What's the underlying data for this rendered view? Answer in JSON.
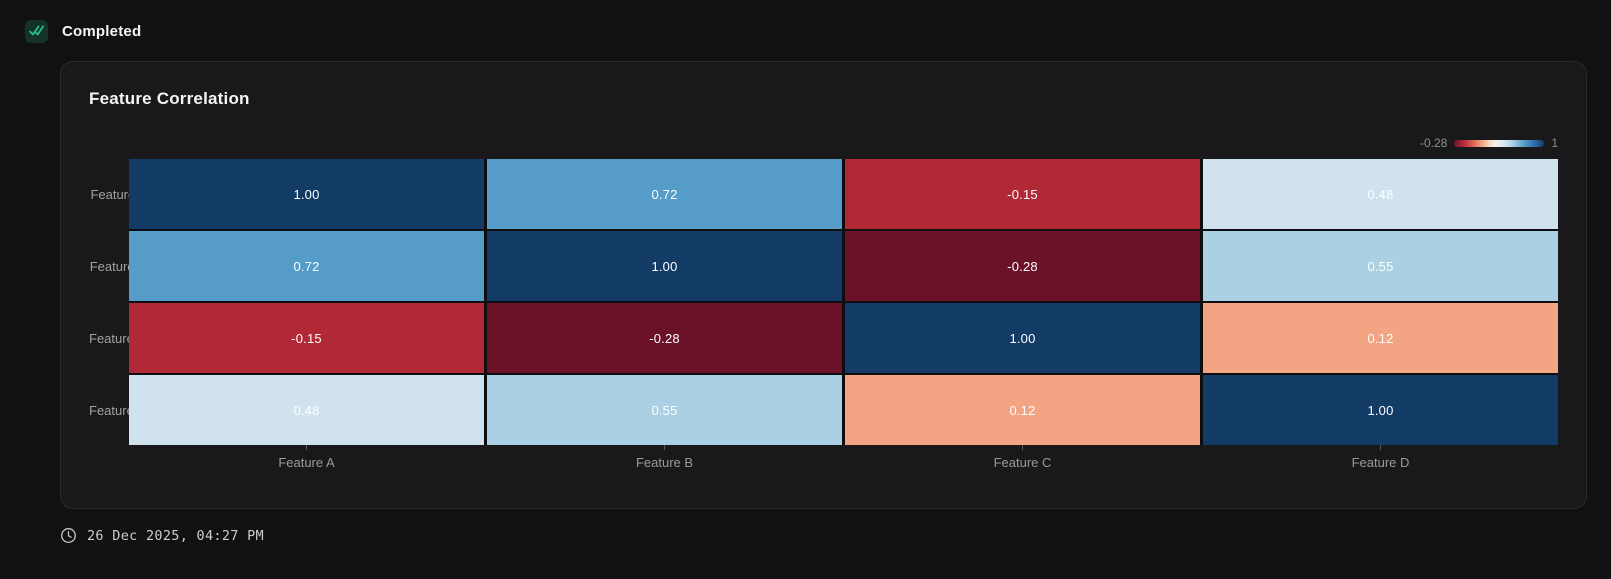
{
  "status": {
    "label": "Completed",
    "icon": "double-check-icon",
    "badge_bg": "#12322a",
    "badge_fg": "#2ebd85"
  },
  "card": {
    "title": "Feature Correlation"
  },
  "legend": {
    "min_label": "-0.28",
    "max_label": "1"
  },
  "chart_data": {
    "type": "heatmap",
    "title": "Feature Correlation",
    "rows": [
      "Feature A",
      "Feature B",
      "Feature C",
      "Feature D"
    ],
    "columns": [
      "Feature A",
      "Feature B",
      "Feature C",
      "Feature D"
    ],
    "values": [
      [
        1,
        0.72,
        -0.15,
        0.48
      ],
      [
        0.72,
        1,
        -0.28,
        0.55
      ],
      [
        -0.15,
        -0.28,
        1,
        0.12
      ],
      [
        0.48,
        0.55,
        0.12,
        1
      ]
    ],
    "value_labels": [
      [
        "1.00",
        "0.72",
        "-0.15",
        "0.48"
      ],
      [
        "0.72",
        "1.00",
        "-0.28",
        "0.55"
      ],
      [
        "-0.15",
        "-0.28",
        "1.00",
        "0.12"
      ],
      [
        "0.48",
        "0.55",
        "0.12",
        "1.00"
      ]
    ],
    "color_scale": {
      "type": "diverging-RdBu",
      "domain": [
        -0.28,
        1
      ],
      "gradient_stops": [
        "#6b1229 0%",
        "#b12837 10%",
        "#d96550 21%",
        "#f2a483 31%",
        "#f6dcca 40%",
        "#f3f0ef 47%",
        "#d5e5ef 56%",
        "#abd0e3 65%",
        "#559cc8 78%",
        "#2a6bab 90%",
        "#123b66 100%"
      ]
    },
    "cell_colors": {
      "1": "#123b66",
      "0.72": "#559cc8",
      "0.55": "#abd0e3",
      "0.48": "#cfe2ee",
      "0.12": "#f2a483",
      "-0.15": "#b12837",
      "-0.28": "#6b1229"
    },
    "cell_text_color": "#ffffff",
    "legend_position": "top-right",
    "grid": false
  },
  "footer": {
    "timestamp": "26 Dec 2025, 04:27 PM",
    "icon": "clock-icon"
  }
}
